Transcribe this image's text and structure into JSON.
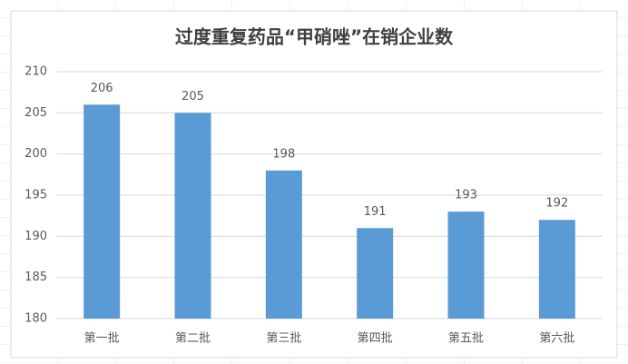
{
  "chart_data": {
    "type": "bar",
    "title": "过度重复药品“甲硝唑”在销企业数",
    "categories": [
      "第一批",
      "第二批",
      "第三批",
      "第四批",
      "第五批",
      "第六批"
    ],
    "values": [
      206,
      205,
      198,
      191,
      193,
      192
    ],
    "color": "#5b9bd5",
    "ylim": [
      180,
      210
    ],
    "yticks": [
      180,
      185,
      190,
      195,
      200,
      205,
      210
    ],
    "grid": true
  }
}
